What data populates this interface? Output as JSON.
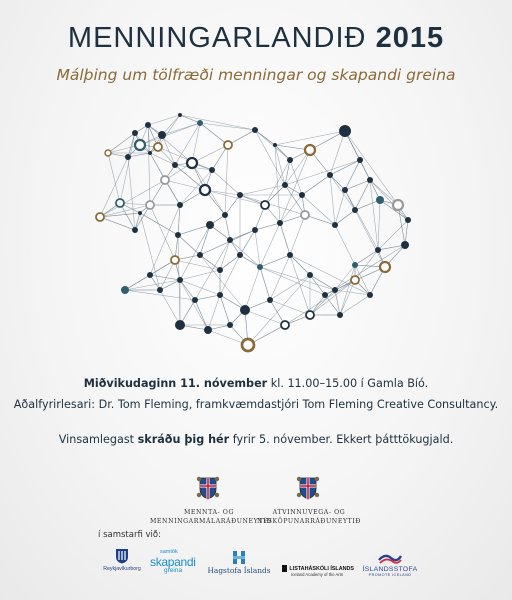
{
  "header": {
    "title": "MENNINGARLANDIÐ",
    "year": "2015",
    "subtitle": "Málþing um tölfræði menningar og skapandi greina"
  },
  "info": {
    "date": "Miðvikudaginn 11. nóvember",
    "time_place": " kl. 11.00–15.00 í Gamla Bíó.",
    "speaker": "Aðalfyrirlesari: Dr. Tom Fleming, framkvæmdastjóri Tom Fleming Creative Consultancy.",
    "register_pre": "Vinsamlegast ",
    "register_link": "skráðu þig hér",
    "register_post": " fyrir 5. nóvember. Ekkert þátttökugjald."
  },
  "ministries": {
    "left_line1": "MENNTA- OG",
    "left_line2": "MENNINGARMÁLARÁÐUNEYTIÐ",
    "right_line1": "ATVINNUVEGA- OG",
    "right_line2": "NÝSKÖPUNARRÁÐUNEYTIÐ"
  },
  "partners": {
    "label": "í samstarfi við:",
    "reykjavik": "Reykjavíkurborg",
    "skapandi_small": "samtök",
    "skapandi_main": "skapandi",
    "skapandi_sub": "greina",
    "hagstofa": "Hagstofa Íslands",
    "lhi_main": "LISTAHÁSKÓLI ÍSLANDS",
    "lhi_sub": "Iceland Academy of the Arts",
    "islandsstofa_main": "ÍSLANDSSTOFA",
    "islandsstofa_sub": "PROMOTE ICELAND"
  },
  "colors": {
    "navy": "#1f3140",
    "teal": "#2f5f6f",
    "gold": "#8a6a38",
    "gray": "#9a9a9a"
  },
  "icons": {
    "network": "iceland-network-map",
    "crest": "iceland-coat-of-arms-icon"
  }
}
